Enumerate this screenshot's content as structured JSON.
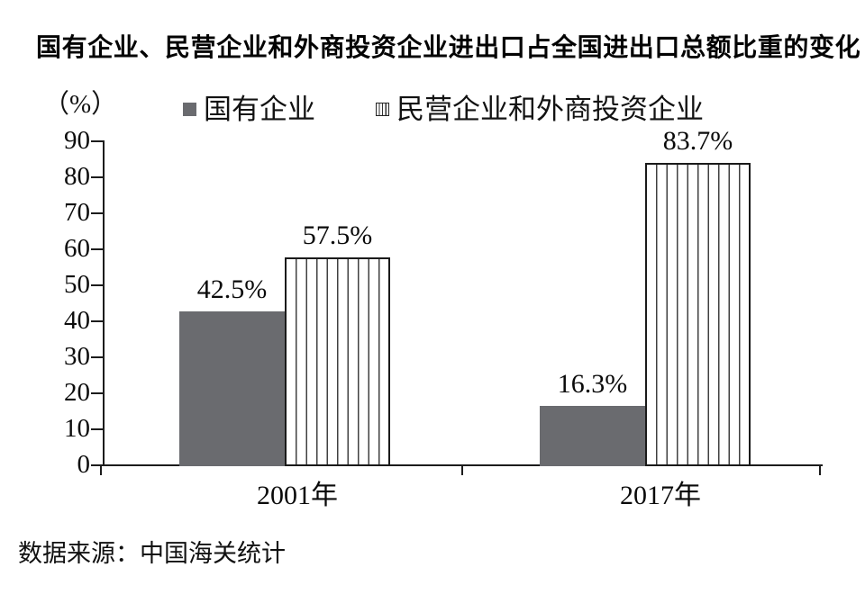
{
  "title": "国有企业、民营企业和外商投资企业进出口占全国进出口总额比重的变化",
  "unit_label": "（%）",
  "legend": [
    {
      "label": "国有企业",
      "swatch": "solid-gray-square",
      "color": "#6a6b6f"
    },
    {
      "label": "民营企业和外商投资企业",
      "swatch": "striped-square"
    }
  ],
  "source": "数据来源：中国海关统计",
  "chart_data": {
    "type": "bar",
    "title": "国有企业、民营企业和外商投资企业进出口占全国进出口总额比重的变化",
    "categories": [
      "2001年",
      "2017年"
    ],
    "series": [
      {
        "name": "国有企业",
        "style": "solid",
        "color": "#6a6b6f",
        "values": [
          42.5,
          16.3
        ],
        "labels": [
          "42.5%",
          "16.3%"
        ]
      },
      {
        "name": "民营企业和外商投资企业",
        "style": "striped",
        "values": [
          57.5,
          83.7
        ],
        "labels": [
          "57.5%",
          "83.7%"
        ]
      }
    ],
    "xlabel": "",
    "ylabel": "（%）",
    "ylim": [
      0,
      90
    ],
    "ytick_step": 10,
    "grid": false,
    "legend_position": "top",
    "source_note": "数据来源：中国海关统计"
  }
}
